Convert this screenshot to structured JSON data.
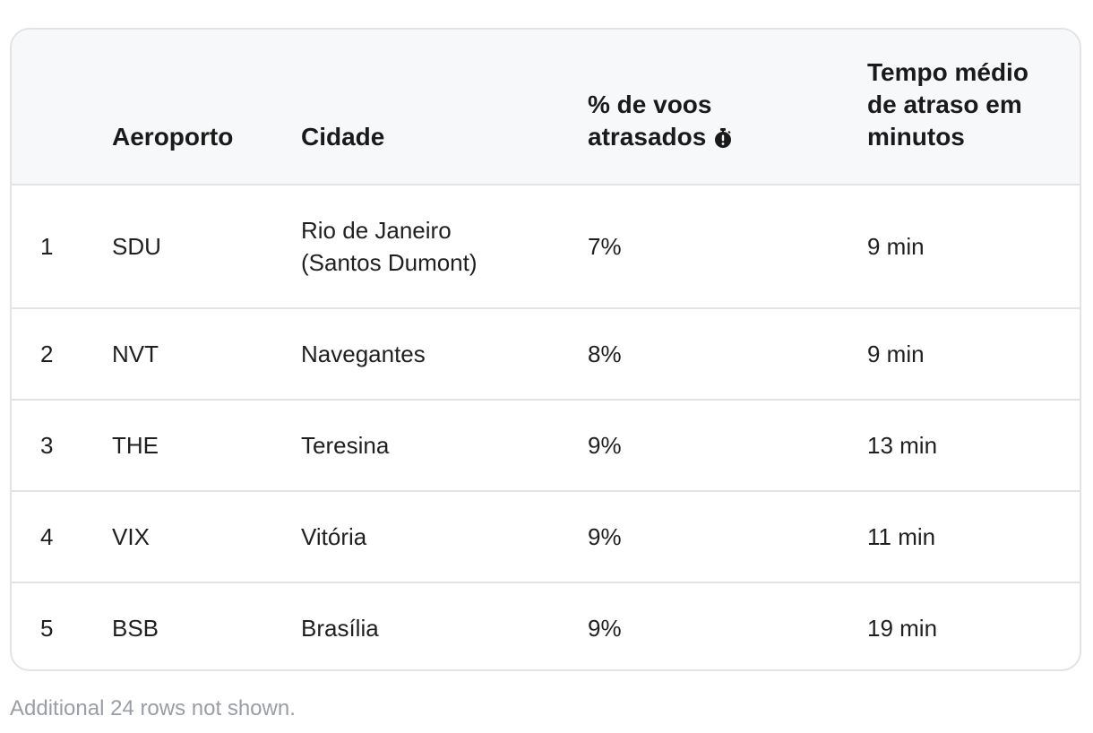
{
  "table": {
    "headers": {
      "rank": "",
      "aeroporto": "Aeroporto",
      "cidade": "Cidade",
      "pct_line1": "% de voos",
      "pct_line2": "atrasados",
      "tempo_line1": "Tempo médio",
      "tempo_line2": "de atraso em",
      "tempo_line3": "minutos"
    },
    "header_icon": "stopwatch-alert-icon",
    "rows": [
      {
        "rank": "1",
        "aeroporto": "SDU",
        "cidade_line1": "Rio de Janeiro",
        "cidade_line2": "(Santos Dumont)",
        "pct": "7%",
        "tempo": "9 min"
      },
      {
        "rank": "2",
        "aeroporto": "NVT",
        "cidade_line1": "Navegantes",
        "cidade_line2": "",
        "pct": "8%",
        "tempo": "9 min"
      },
      {
        "rank": "3",
        "aeroporto": "THE",
        "cidade_line1": "Teresina",
        "cidade_line2": "",
        "pct": "9%",
        "tempo": "13 min"
      },
      {
        "rank": "4",
        "aeroporto": "VIX",
        "cidade_line1": "Vitória",
        "cidade_line2": "",
        "pct": "9%",
        "tempo": "11 min"
      },
      {
        "rank": "5",
        "aeroporto": "BSB",
        "cidade_line1": "Brasília",
        "cidade_line2": "",
        "pct": "9%",
        "tempo": "19 min"
      }
    ]
  },
  "footer": {
    "note": "Additional 24 rows not shown."
  },
  "colors": {
    "header_bg": "#f7f8fa",
    "border": "#e1e3e6",
    "text": "#1a1a1a",
    "muted": "#9a9ea4"
  }
}
